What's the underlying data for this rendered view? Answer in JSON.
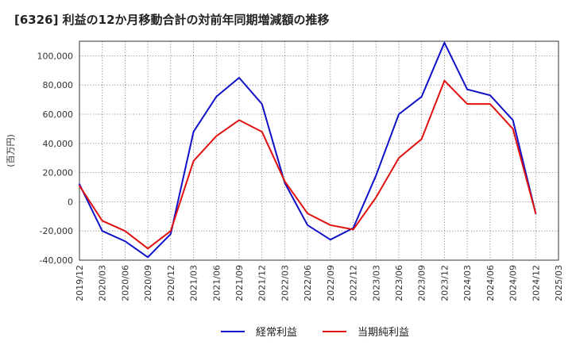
{
  "chart_data": {
    "type": "line",
    "title": "[6326]  利益の12か月移動合計の対前年同期増減額の推移",
    "ylabel": "(百万円)",
    "xlabel": "",
    "ylim": [
      -40000,
      110000
    ],
    "yticks": [
      -40000,
      -20000,
      0,
      20000,
      40000,
      60000,
      80000,
      100000
    ],
    "ytick_labels": [
      "-40,000",
      "-20,000",
      "0",
      "20,000",
      "40,000",
      "60,000",
      "80,000",
      "100,000"
    ],
    "categories": [
      "2019/12",
      "2020/03",
      "2020/06",
      "2020/09",
      "2020/12",
      "2021/03",
      "2021/06",
      "2021/09",
      "2021/12",
      "2022/03",
      "2022/06",
      "2022/09",
      "2022/12",
      "2023/03",
      "2023/06",
      "2023/09",
      "2023/12",
      "2024/03",
      "2024/06",
      "2024/09",
      "2024/12",
      "2025/03"
    ],
    "grid": true,
    "legend_position": "bottom-center",
    "series": [
      {
        "name": "経常利益",
        "color": "#1010c8",
        "values": [
          12000,
          -20000,
          -27000,
          -38000,
          -22000,
          48000,
          72000,
          85000,
          67000,
          13000,
          -16000,
          -26000,
          -18000,
          18000,
          60000,
          72000,
          109000,
          77000,
          73000,
          56000,
          -8000,
          null
        ]
      },
      {
        "name": "当期純利益",
        "color": "#e01010",
        "values": [
          11000,
          -13000,
          -20000,
          -32000,
          -20000,
          28000,
          45000,
          56000,
          48000,
          14000,
          -8000,
          -16000,
          -19000,
          3000,
          30000,
          43000,
          83000,
          67000,
          67000,
          50000,
          -8000,
          null
        ]
      }
    ]
  }
}
